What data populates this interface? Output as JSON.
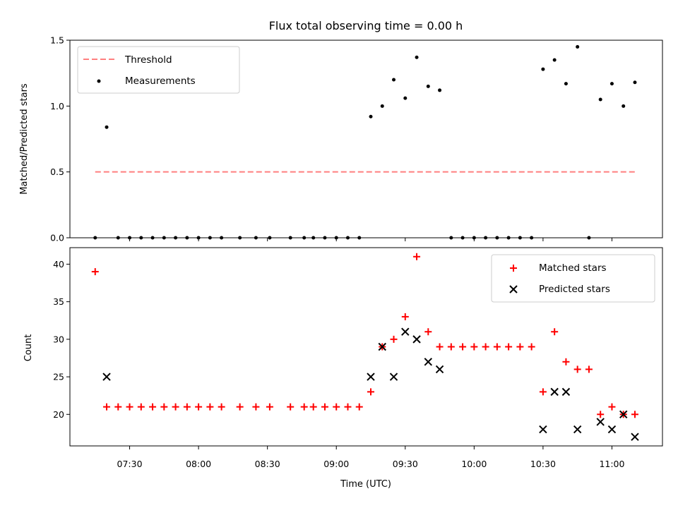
{
  "title": "Flux total observing time = 0.00 h",
  "chart_data": [
    {
      "type": "scatter",
      "panel": "top",
      "ylabel": "Matched/Predicted stars",
      "ylim": [
        0,
        1.5
      ],
      "yticks": [
        0.0,
        0.5,
        1.0,
        1.5
      ],
      "ytick_labels": [
        "0.0",
        "0.5",
        "1.0",
        "1.5"
      ],
      "legend_position": "top-left",
      "threshold": {
        "name": "Threshold",
        "value": 0.5,
        "x_start": "07:15",
        "x_end": "11:10",
        "color": "#ff7f7f"
      },
      "series": [
        {
          "name": "Measurements",
          "color": "#000000",
          "x": [
            "07:15",
            "07:20",
            "07:25",
            "07:30",
            "07:35",
            "07:40",
            "07:45",
            "07:50",
            "07:55",
            "08:00",
            "08:05",
            "08:10",
            "08:18",
            "08:25",
            "08:31",
            "08:40",
            "08:46",
            "08:50",
            "08:55",
            "09:00",
            "09:05",
            "09:10",
            "09:15",
            "09:20",
            "09:25",
            "09:30",
            "09:35",
            "09:40",
            "09:45",
            "09:50",
            "09:55",
            "10:00",
            "10:05",
            "10:10",
            "10:15",
            "10:20",
            "10:25",
            "10:30",
            "10:35",
            "10:40",
            "10:45",
            "10:50",
            "10:55",
            "11:00",
            "11:05",
            "11:10"
          ],
          "y": [
            0,
            0.84,
            0,
            0,
            0,
            0,
            0,
            0,
            0,
            0,
            0,
            0,
            0,
            0,
            0,
            0,
            0,
            0,
            0,
            0,
            0,
            0,
            0.92,
            1.0,
            1.2,
            1.06,
            1.37,
            1.15,
            1.12,
            0,
            0,
            0,
            0,
            0,
            0,
            0,
            0,
            1.28,
            1.35,
            1.17,
            1.45,
            0,
            1.05,
            1.17,
            1.0,
            1.18
          ]
        }
      ]
    },
    {
      "type": "scatter",
      "panel": "bottom",
      "xlabel": "Time (UTC)",
      "ylabel": "Count",
      "xlim": [
        "07:04",
        "11:22"
      ],
      "ylim": [
        15.8,
        42.2
      ],
      "yticks": [
        20,
        25,
        30,
        35,
        40
      ],
      "ytick_labels": [
        "20",
        "25",
        "30",
        "35",
        "40"
      ],
      "xticks": [
        "07:30",
        "08:00",
        "08:30",
        "09:00",
        "09:30",
        "10:00",
        "10:30",
        "11:00"
      ],
      "legend_position": "top-right",
      "series": [
        {
          "name": "Matched stars",
          "marker": "plus",
          "color": "#ff0000",
          "x": [
            "07:15",
            "07:20",
            "07:25",
            "07:30",
            "07:35",
            "07:40",
            "07:45",
            "07:50",
            "07:55",
            "08:00",
            "08:05",
            "08:10",
            "08:18",
            "08:25",
            "08:31",
            "08:40",
            "08:46",
            "08:50",
            "08:55",
            "09:00",
            "09:05",
            "09:10",
            "09:15",
            "09:20",
            "09:25",
            "09:30",
            "09:35",
            "09:40",
            "09:45",
            "09:50",
            "09:55",
            "10:00",
            "10:05",
            "10:10",
            "10:15",
            "10:20",
            "10:25",
            "10:30",
            "10:35",
            "10:40",
            "10:45",
            "10:50",
            "10:55",
            "11:00",
            "11:05",
            "11:10"
          ],
          "y": [
            39,
            21,
            21,
            21,
            21,
            21,
            21,
            21,
            21,
            21,
            21,
            21,
            21,
            21,
            21,
            21,
            21,
            21,
            21,
            21,
            21,
            21,
            23,
            29,
            30,
            33,
            41,
            31,
            29,
            29,
            29,
            29,
            29,
            29,
            29,
            29,
            29,
            23,
            31,
            27,
            26,
            26,
            20,
            21,
            20,
            20
          ]
        },
        {
          "name": "Predicted stars",
          "marker": "x",
          "color": "#000000",
          "x": [
            "07:20",
            "09:15",
            "09:20",
            "09:25",
            "09:30",
            "09:35",
            "09:40",
            "09:45",
            "10:30",
            "10:35",
            "10:40",
            "10:45",
            "10:55",
            "11:00",
            "11:05",
            "11:10"
          ],
          "y": [
            25,
            25,
            29,
            25,
            31,
            30,
            27,
            26,
            18,
            23,
            23,
            18,
            19,
            18,
            20,
            17
          ]
        }
      ]
    }
  ]
}
